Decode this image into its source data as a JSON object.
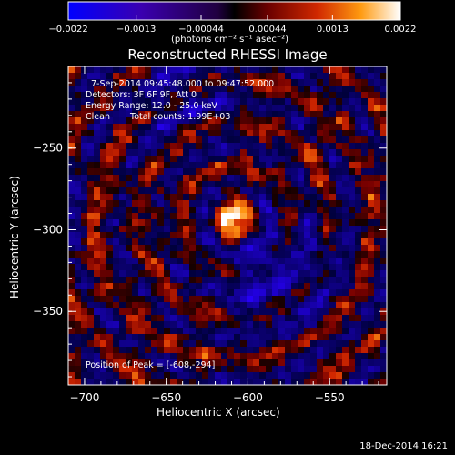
{
  "chart_data": {
    "type": "heatmap",
    "title": "Reconstructed RHESSI Image",
    "xlabel": "Heliocentric X (arcsec)",
    "ylabel": "Heliocentric Y (arcsec)",
    "xlim": [
      -710,
      -515
    ],
    "ylim": [
      -395,
      -200
    ],
    "xticks": [
      -700,
      -650,
      -600,
      -550
    ],
    "yticks": [
      -250,
      -300,
      -350
    ],
    "colorbar": {
      "ticks": [
        "-0.0022",
        "-0.0013",
        "-0.00044",
        "0.00044",
        "0.0013",
        "0.0022"
      ],
      "min": -0.0022,
      "max": 0.0022,
      "label": "(photons cm⁻² s⁻¹ asec⁻²)"
    },
    "peak": {
      "x": -608,
      "y": -294
    },
    "annotations": {
      "time_range": "7-Sep-2014 09:45:48.000 to 09:47:52.000",
      "detectors": "Detectors: 3F 6F 9F, Att 0",
      "energy": "Energy Range: 12.0 - 25.0 keV",
      "method": "Clean",
      "counts": "Total counts: 1.99E+03",
      "peak_text": "Position of Peak = [-608,-294]"
    },
    "footer": "18-Dec-2014 16:21"
  },
  "colors": {
    "background": "#000000",
    "text": "#ffffff"
  }
}
